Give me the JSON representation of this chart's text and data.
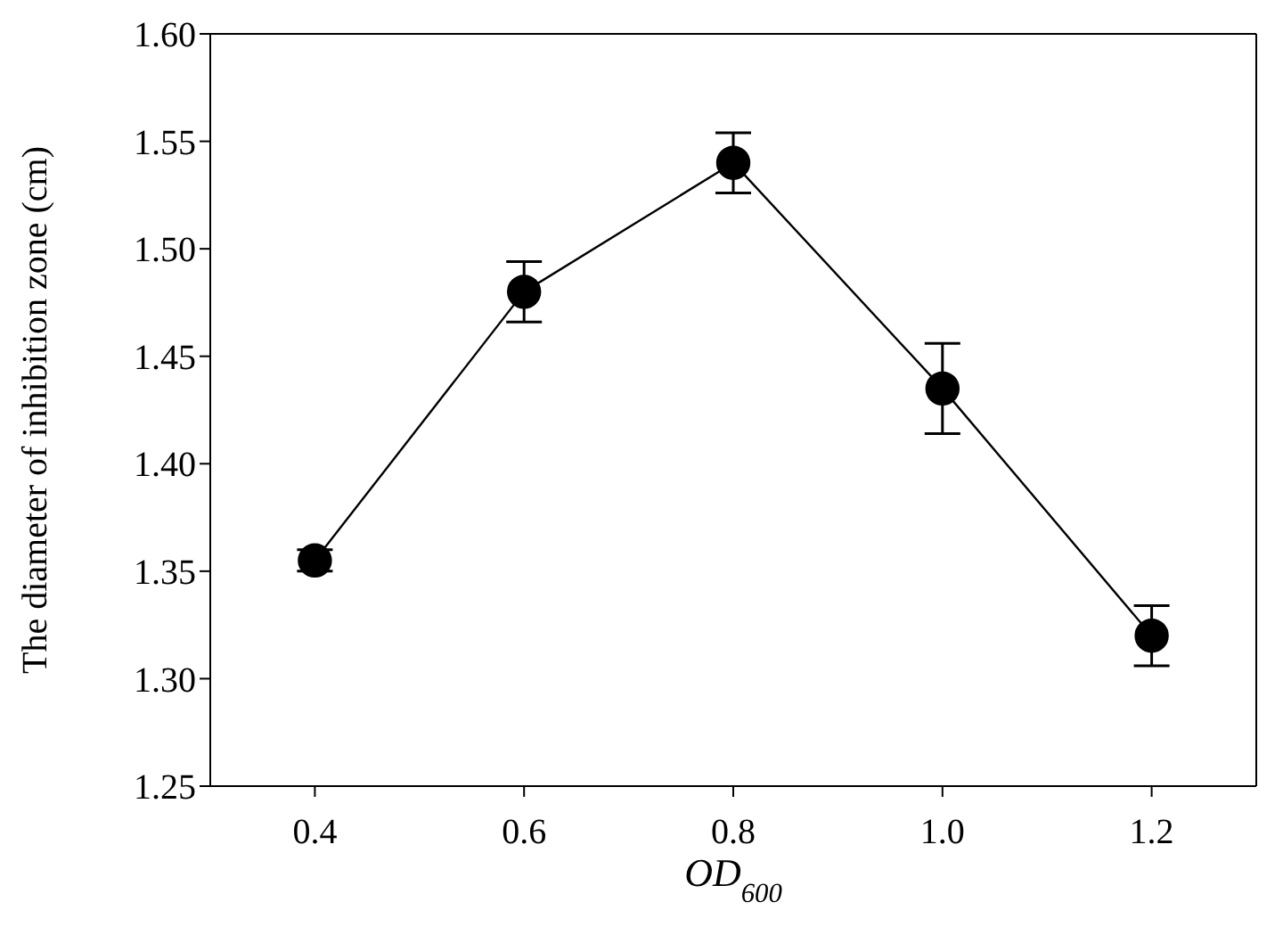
{
  "chart_data": {
    "type": "line",
    "xlabel": "OD$_{600}$",
    "ylabel": "The diameter of inhibition zone (cm)",
    "x": [
      0.4,
      0.6,
      0.8,
      1.0,
      1.2
    ],
    "series": [
      {
        "color": "#000000",
        "values": [
          1.355,
          1.48,
          1.54,
          1.435,
          1.32
        ],
        "errors": [
          0.005,
          0.014,
          0.014,
          0.021,
          0.014
        ]
      }
    ],
    "xlim": [
      0.3,
      1.3
    ],
    "xticks": [
      {
        "value": 0.4,
        "label": "0.4"
      },
      {
        "value": 0.6,
        "label": "0.6"
      },
      {
        "value": 0.8,
        "label": "0.8"
      },
      {
        "value": 1.0,
        "label": "1.0"
      },
      {
        "value": 1.2,
        "label": "1.2"
      }
    ],
    "ylim": [
      1.25,
      1.6
    ],
    "yticks": [
      {
        "value": 1.25,
        "label": "1.25"
      },
      {
        "value": 1.3,
        "label": "1.30"
      },
      {
        "value": 1.35,
        "label": "1.35"
      },
      {
        "value": 1.4,
        "label": "1.40"
      },
      {
        "value": 1.45,
        "label": "1.45"
      },
      {
        "value": 1.5,
        "label": "1.50"
      },
      {
        "value": 1.55,
        "label": "1.55"
      },
      {
        "value": 1.6,
        "label": "1.60"
      }
    ],
    "grid": false,
    "legend": false,
    "marker": "circle",
    "line_style": "solid"
  }
}
